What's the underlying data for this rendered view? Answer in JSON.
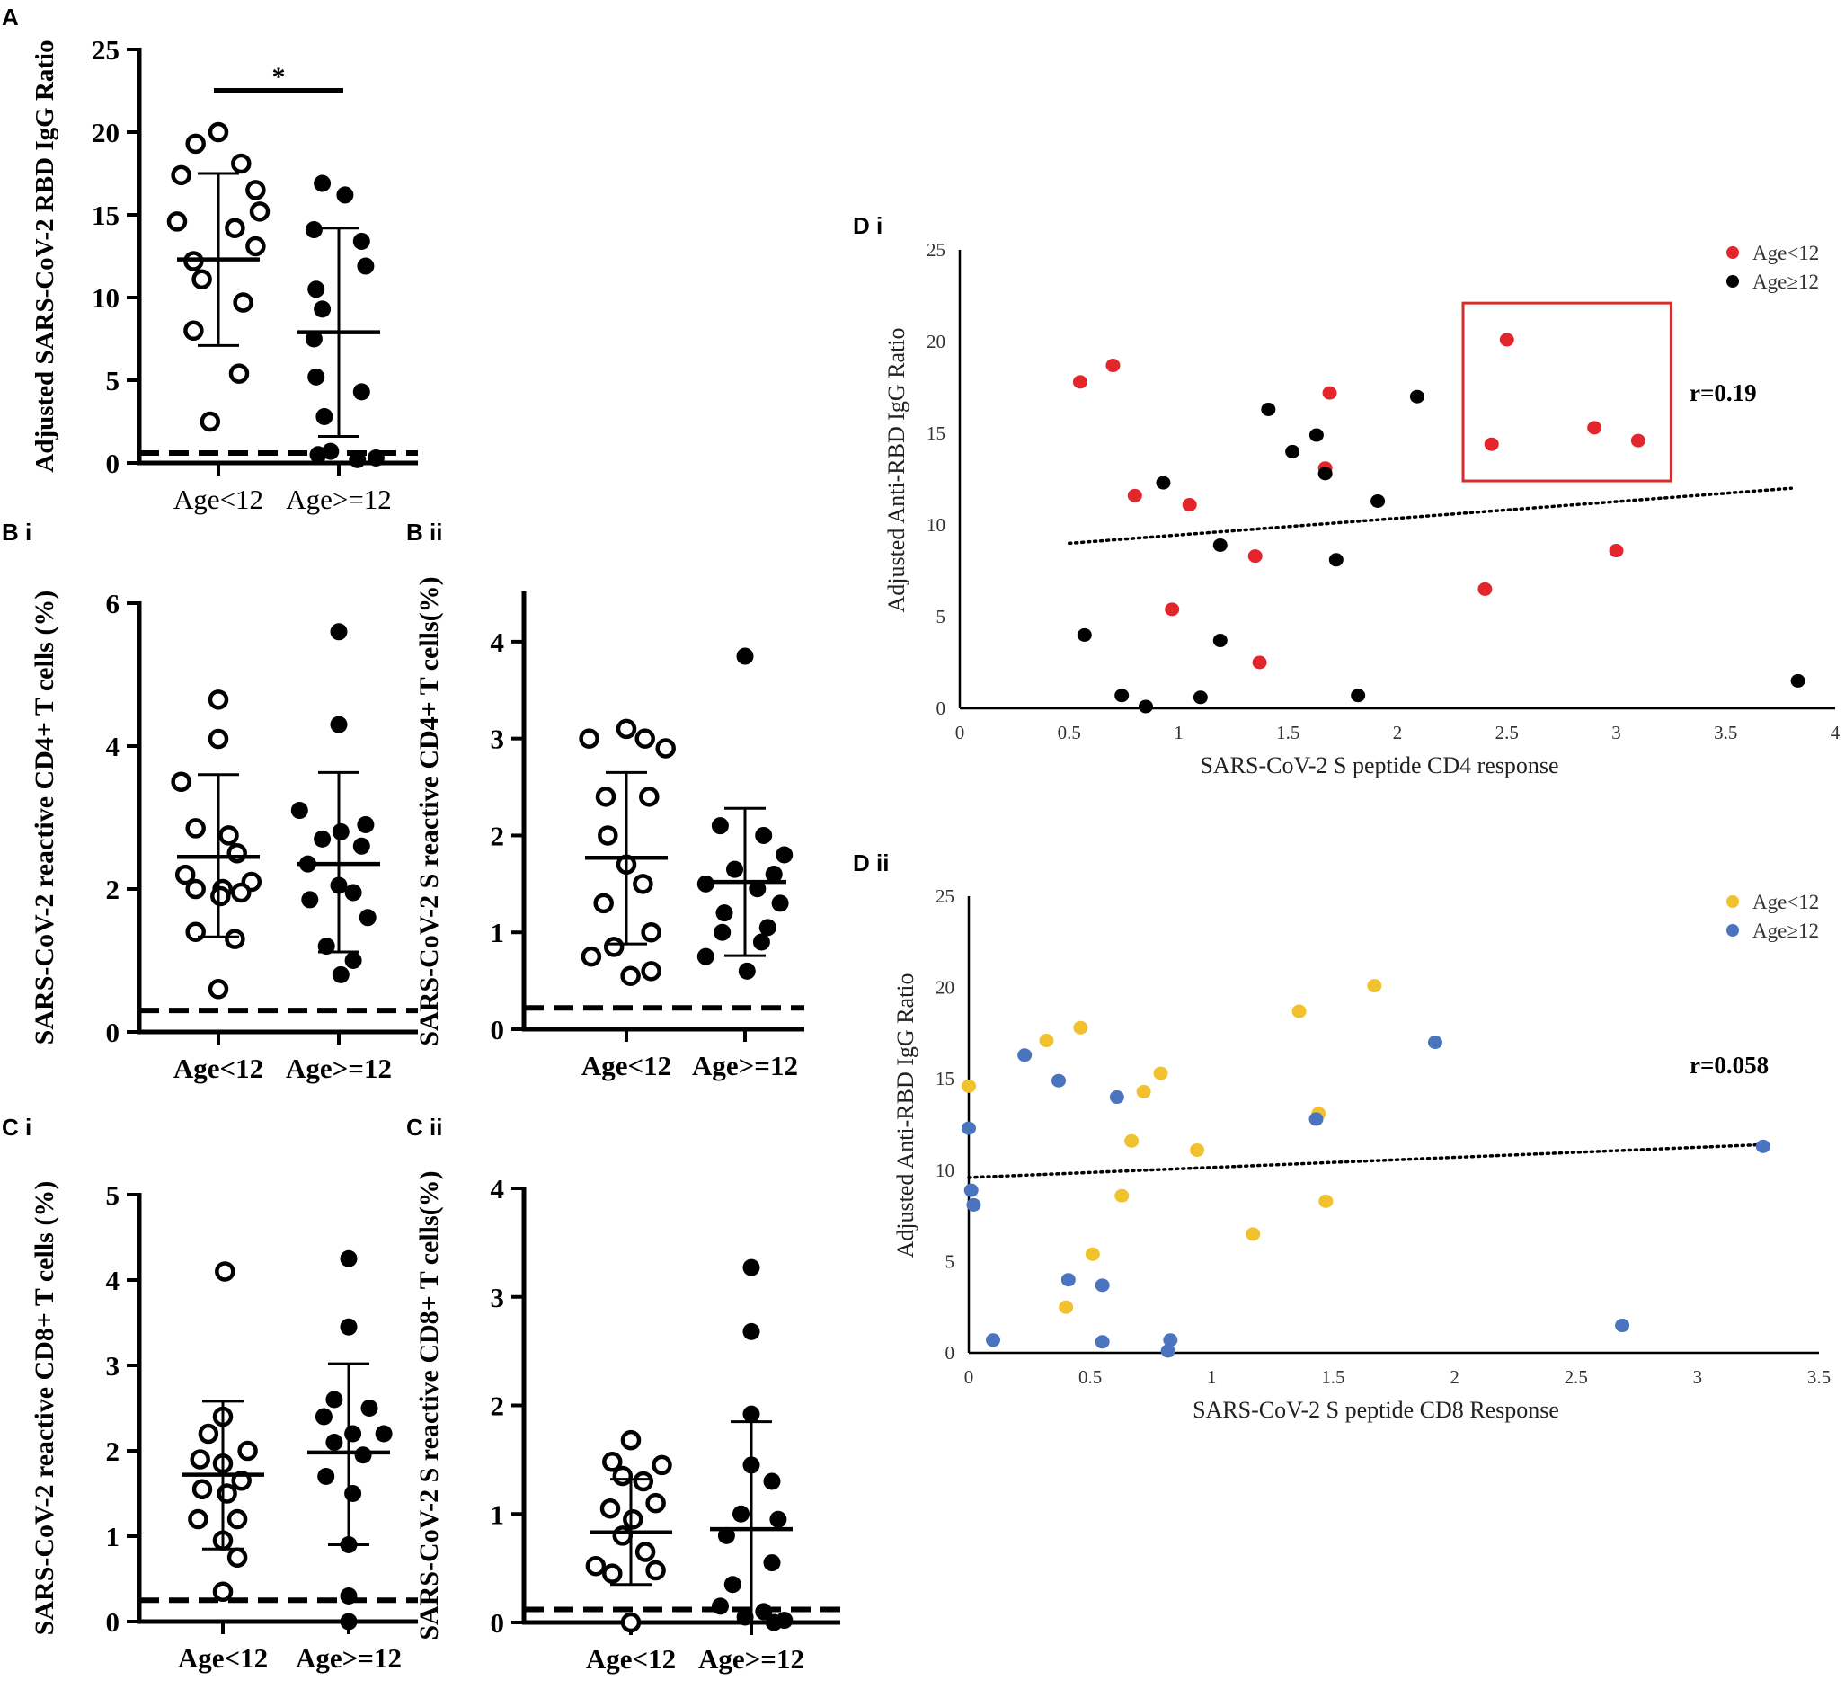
{
  "colors": {
    "ink": "#000000",
    "red": "#e3262b",
    "yellow": "#f2c12e",
    "blue": "#4a74c0",
    "box": "#d32f2f"
  },
  "chart_data": [
    {
      "id": "A",
      "panel_label": "A",
      "type": "scatter",
      "style": "dot",
      "title": "",
      "xlabel": "",
      "ylabel": "Adjusted SARS-CoV-2 RBD IgG Ratio",
      "ylim": [
        0,
        25
      ],
      "yticks": [
        0,
        5,
        10,
        15,
        20,
        25
      ],
      "ytick_labels": [
        "0",
        "5",
        "10",
        "15",
        "20",
        "25"
      ],
      "categories": [
        "Age<12",
        "Age>=12"
      ],
      "series": [
        {
          "name": "Age<12",
          "marker": "open",
          "values": [
            20.0,
            19.3,
            18.1,
            17.4,
            16.5,
            15.2,
            14.6,
            14.2,
            13.1,
            12.2,
            11.1,
            9.7,
            8.0,
            5.4,
            2.5
          ],
          "offsets": [
            0.0,
            -0.55,
            0.55,
            -0.9,
            0.9,
            1.0,
            -1.0,
            0.4,
            0.9,
            -0.6,
            -0.4,
            0.6,
            -0.6,
            0.5,
            -0.2
          ],
          "mean": 12.3,
          "sd_high": 17.5,
          "sd_low": 7.1
        },
        {
          "name": "Age>=12",
          "marker": "filled",
          "values": [
            16.9,
            16.2,
            14.1,
            13.4,
            11.9,
            10.5,
            9.3,
            7.5,
            5.2,
            4.3,
            2.8,
            0.7,
            0.5,
            0.3,
            0.2
          ],
          "offsets": [
            -0.4,
            0.15,
            -0.6,
            0.55,
            0.65,
            -0.55,
            -0.4,
            -0.6,
            -0.55,
            0.55,
            -0.35,
            -0.2,
            -0.5,
            0.9,
            0.45
          ],
          "mean": 7.9,
          "sd_high": 14.2,
          "sd_low": 1.6
        }
      ],
      "threshold": 0.6,
      "significance": {
        "label": "*"
      }
    },
    {
      "id": "Bi",
      "panel_label": "B i",
      "type": "scatter",
      "style": "dot",
      "title": "",
      "xlabel": "",
      "ylabel": "SARS-CoV-2 reactive CD4+ T cells (%)",
      "ylim": [
        0,
        6
      ],
      "yticks": [
        0,
        2,
        4,
        6
      ],
      "ytick_labels": [
        "0",
        "2",
        "4",
        "6"
      ],
      "categories": [
        "Age<12",
        "Age>=12"
      ],
      "series": [
        {
          "name": "Age<12",
          "marker": "open",
          "values": [
            4.65,
            4.1,
            3.5,
            2.85,
            2.75,
            2.5,
            2.2,
            2.1,
            2.0,
            2.0,
            1.95,
            1.9,
            1.4,
            1.3,
            0.6
          ],
          "offsets": [
            0.0,
            0.0,
            -0.9,
            -0.55,
            0.25,
            0.45,
            -0.8,
            0.8,
            -0.55,
            0.1,
            0.55,
            0.05,
            -0.55,
            0.4,
            0.0
          ],
          "mean": 2.45,
          "sd_high": 3.6,
          "sd_low": 1.33
        },
        {
          "name": "Age>=12",
          "marker": "filled",
          "values": [
            5.6,
            4.3,
            3.1,
            2.9,
            2.8,
            2.7,
            2.6,
            2.35,
            2.05,
            1.95,
            1.85,
            1.6,
            1.2,
            1.0,
            0.8
          ],
          "offsets": [
            0.0,
            0.0,
            -0.95,
            0.65,
            0.05,
            -0.4,
            0.55,
            -0.75,
            0.0,
            0.35,
            -0.7,
            0.7,
            -0.3,
            0.35,
            0.05
          ],
          "mean": 2.35,
          "sd_high": 3.63,
          "sd_low": 1.12
        }
      ],
      "threshold": 0.3
    },
    {
      "id": "Bii",
      "panel_label": "B ii",
      "type": "scatter",
      "style": "dot",
      "title": "",
      "xlabel": "",
      "ylabel": "SARS-CoV-2 S reactive CD4+ T cells(%)",
      "ylim": [
        0,
        4.5
      ],
      "yticks": [
        0,
        1,
        2,
        3,
        4
      ],
      "ytick_labels": [
        "0",
        "1",
        "2",
        "3",
        "4"
      ],
      "categories": [
        "Age<12",
        "Age>=12"
      ],
      "series": [
        {
          "name": "Age<12",
          "marker": "open",
          "values": [
            3.1,
            3.0,
            3.0,
            2.9,
            2.4,
            2.4,
            2.0,
            1.7,
            1.5,
            1.3,
            1.0,
            0.85,
            0.75,
            0.6,
            0.55
          ],
          "offsets": [
            0.0,
            -0.9,
            0.45,
            0.95,
            -0.5,
            0.55,
            -0.45,
            0.0,
            0.4,
            -0.55,
            0.6,
            -0.3,
            -0.85,
            0.6,
            0.1
          ],
          "mean": 1.77,
          "sd_high": 2.65,
          "sd_low": 0.88
        },
        {
          "name": "Age>=12",
          "marker": "filled",
          "values": [
            3.85,
            2.1,
            2.0,
            1.8,
            1.65,
            1.6,
            1.5,
            1.45,
            1.3,
            1.2,
            1.05,
            1.0,
            0.9,
            0.75,
            0.6
          ],
          "offsets": [
            0.0,
            -0.6,
            0.45,
            0.95,
            -0.25,
            0.7,
            -0.95,
            0.3,
            0.85,
            -0.5,
            0.55,
            -0.55,
            0.4,
            -0.95,
            0.05
          ],
          "mean": 1.52,
          "sd_high": 2.28,
          "sd_low": 0.76
        }
      ],
      "threshold": 0.22
    },
    {
      "id": "Ci",
      "panel_label": "C i",
      "type": "scatter",
      "style": "dot",
      "title": "",
      "xlabel": "",
      "ylabel": "SARS-CoV-2 reactive CD8+ T cells (%)",
      "ylim": [
        0,
        5
      ],
      "yticks": [
        0,
        1,
        2,
        3,
        4,
        5
      ],
      "ytick_labels": [
        "0",
        "1",
        "2",
        "3",
        "4",
        "5"
      ],
      "categories": [
        "Age<12",
        "Age>=12"
      ],
      "series": [
        {
          "name": "Age<12",
          "marker": "open",
          "values": [
            4.1,
            2.4,
            2.2,
            2.0,
            1.9,
            1.85,
            1.65,
            1.55,
            1.5,
            1.2,
            1.2,
            0.95,
            0.75,
            0.35
          ],
          "offsets": [
            0.05,
            0.0,
            -0.35,
            0.6,
            -0.55,
            0.0,
            0.45,
            -0.5,
            0.1,
            0.35,
            -0.6,
            0.0,
            0.35,
            0.0
          ],
          "mean": 1.72,
          "sd_high": 2.58,
          "sd_low": 0.85
        },
        {
          "name": "Age>=12",
          "marker": "filled",
          "values": [
            4.25,
            3.45,
            2.6,
            2.5,
            2.4,
            2.2,
            2.2,
            2.1,
            1.95,
            1.7,
            1.5,
            0.9,
            0.3,
            0.0
          ],
          "offsets": [
            0.0,
            0.0,
            -0.35,
            0.5,
            -0.6,
            0.85,
            0.1,
            -0.35,
            0.35,
            -0.55,
            0.1,
            0.0,
            0.0,
            0.0
          ],
          "mean": 1.98,
          "sd_high": 3.02,
          "sd_low": 0.9
        }
      ],
      "threshold": 0.25
    },
    {
      "id": "Cii",
      "panel_label": "C ii",
      "type": "scatter",
      "style": "dot",
      "title": "",
      "xlabel": "",
      "ylabel": "SARS-CoV-2 S reactive CD8+ T cells(%)",
      "ylim": [
        0,
        4
      ],
      "yticks": [
        0,
        1,
        2,
        3,
        4
      ],
      "ytick_labels": [
        "0",
        "1",
        "2",
        "3",
        "4"
      ],
      "categories": [
        "Age<12",
        "Age>=12"
      ],
      "series": [
        {
          "name": "Age<12",
          "marker": "open",
          "values": [
            1.68,
            1.48,
            1.45,
            1.35,
            1.3,
            1.1,
            1.05,
            0.95,
            0.8,
            0.65,
            0.52,
            0.48,
            0.45,
            0.0
          ],
          "offsets": [
            0.0,
            -0.45,
            0.75,
            -0.2,
            0.3,
            0.6,
            -0.5,
            0.05,
            -0.2,
            0.35,
            -0.85,
            0.6,
            -0.45,
            0.0
          ],
          "mean": 0.83,
          "sd_high": 1.32,
          "sd_low": 0.35
        },
        {
          "name": "Age>=12",
          "marker": "filled",
          "values": [
            3.27,
            2.68,
            1.92,
            1.45,
            1.3,
            1.0,
            0.95,
            0.8,
            0.55,
            0.35,
            0.15,
            0.1,
            0.05,
            0.02,
            0.0
          ],
          "offsets": [
            0.0,
            0.0,
            0.0,
            0.0,
            0.5,
            -0.25,
            0.65,
            -0.6,
            0.5,
            -0.45,
            -0.75,
            0.3,
            -0.15,
            0.8,
            0.55
          ],
          "mean": 0.86,
          "sd_high": 1.85,
          "sd_low": 0.0
        },
        {
          "name": "_",
          "marker": "none",
          "values": []
        }
      ],
      "threshold": 0.12
    },
    {
      "id": "Di",
      "panel_label": "D i",
      "type": "scatter",
      "style": "correlation",
      "title": "",
      "xlabel": "SARS-CoV-2 S peptide CD4 response",
      "ylabel": "Adjusted Anti-RBD IgG Ratio",
      "xlim": [
        0,
        4
      ],
      "ylim": [
        0,
        25
      ],
      "xticks": [
        0,
        0.5,
        1,
        1.5,
        2,
        2.5,
        3,
        3.5,
        4
      ],
      "xtick_labels": [
        "0",
        "0.5",
        "1",
        "1.5",
        "2",
        "2.5",
        "3",
        "3.5",
        "4"
      ],
      "yticks": [
        0,
        5,
        10,
        15,
        20,
        25
      ],
      "ytick_labels": [
        "0",
        "5",
        "10",
        "15",
        "20",
        "25"
      ],
      "legend": [
        "Age<12",
        "Age≥12"
      ],
      "annotation": "r=0.19",
      "highlight_box": {
        "x0": 2.3,
        "x1": 3.25,
        "y0": 12.4,
        "y1": 22.1
      },
      "trendline": {
        "x0": 0.5,
        "y0": 9.0,
        "x1": 3.8,
        "y1": 12.0
      },
      "series": [
        {
          "name": "Age<12",
          "x": [
            0.55,
            0.7,
            0.8,
            1.05,
            0.97,
            1.35,
            1.37,
            1.67,
            1.69,
            2.4,
            2.43,
            2.5,
            2.9,
            3.0,
            3.1
          ],
          "y": [
            17.8,
            18.7,
            11.6,
            11.1,
            5.4,
            8.3,
            2.5,
            13.1,
            17.2,
            6.5,
            14.4,
            20.1,
            15.3,
            8.6,
            14.6
          ]
        },
        {
          "name": "Age≥12",
          "x": [
            0.57,
            0.74,
            0.85,
            0.93,
            1.1,
            1.19,
            1.19,
            1.41,
            1.52,
            1.63,
            1.67,
            1.72,
            1.82,
            1.91,
            2.09,
            3.83
          ],
          "y": [
            4.0,
            0.7,
            0.1,
            12.3,
            0.6,
            8.9,
            3.7,
            16.3,
            14.0,
            14.9,
            12.8,
            8.1,
            0.7,
            11.3,
            17.0,
            1.5
          ]
        }
      ]
    },
    {
      "id": "Dii",
      "panel_label": "D ii",
      "type": "scatter",
      "style": "correlation",
      "title": "",
      "xlabel": "SARS-CoV-2 S peptide CD8 Response",
      "ylabel": "Adjusted Anti-RBD IgG Ratio",
      "xlim": [
        0,
        3.5
      ],
      "ylim": [
        0,
        25
      ],
      "xticks": [
        0,
        0.5,
        1,
        1.5,
        2,
        2.5,
        3,
        3.5
      ],
      "xtick_labels": [
        "0",
        "0.5",
        "1",
        "1.5",
        "2",
        "2.5",
        "3",
        "3.5"
      ],
      "yticks": [
        0,
        5,
        10,
        15,
        20,
        25
      ],
      "ytick_labels": [
        "0",
        "5",
        "10",
        "15",
        "20",
        "25"
      ],
      "legend": [
        "Age<12",
        "Age≥12"
      ],
      "annotation": "r=0.058",
      "trendline": {
        "x0": 0.0,
        "y0": 9.6,
        "x1": 3.27,
        "y1": 11.4
      },
      "series": [
        {
          "name": "Age<12",
          "x": [
            0.0,
            0.32,
            0.46,
            0.4,
            0.51,
            0.63,
            0.67,
            0.72,
            0.79,
            0.94,
            1.17,
            1.36,
            1.44,
            1.47,
            1.67
          ],
          "y": [
            14.6,
            17.1,
            17.8,
            2.5,
            5.4,
            8.6,
            11.6,
            14.3,
            15.3,
            11.1,
            6.5,
            18.7,
            13.1,
            8.3,
            20.1
          ]
        },
        {
          "name": "Age≥12",
          "x": [
            0.0,
            0.01,
            0.02,
            0.1,
            0.23,
            0.37,
            0.41,
            0.55,
            0.55,
            0.61,
            0.82,
            0.83,
            1.43,
            1.92,
            2.69,
            3.27
          ],
          "y": [
            12.3,
            8.9,
            8.1,
            0.7,
            16.3,
            14.9,
            4.0,
            3.7,
            0.6,
            14.0,
            0.1,
            0.7,
            12.8,
            17.0,
            1.5,
            11.3
          ]
        }
      ]
    }
  ]
}
